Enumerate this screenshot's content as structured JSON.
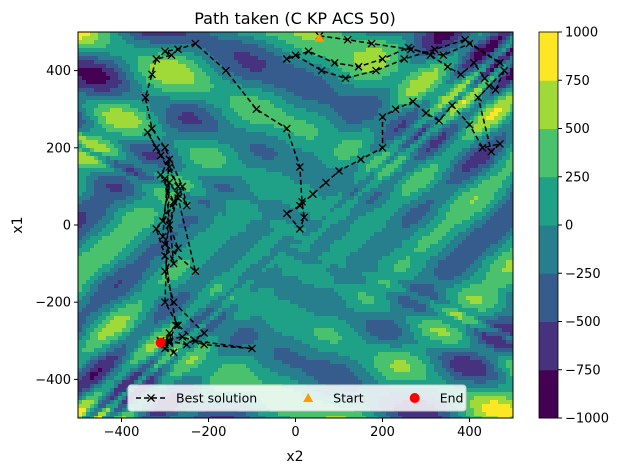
{
  "chart_data": {
    "type": "contour_path",
    "title": "Path taken (C KP ACS 50)",
    "xlabel": "x2",
    "ylabel": "x1",
    "xlim": [
      -500,
      500
    ],
    "ylim": [
      -500,
      500
    ],
    "xticks": [
      -400,
      -200,
      0,
      200,
      400
    ],
    "yticks": [
      -400,
      -200,
      0,
      200,
      400
    ],
    "grid": false,
    "legend_placement": "bottom-center",
    "colorbar": {
      "levels": [
        -1000,
        -750,
        -500,
        -250,
        0,
        250,
        500,
        750,
        1000
      ],
      "tick_labels": [
        "−1000",
        "−750",
        "−500",
        "−250",
        "0",
        "250",
        "500",
        "750",
        "1000"
      ],
      "colors": [
        "#440154",
        "#46327e",
        "#365c8d",
        "#277f8e",
        "#1fa187",
        "#4ac16d",
        "#a0da39",
        "#fde725"
      ]
    },
    "series": [
      {
        "name": "Best solution",
        "style": "dashed-black-x",
        "color": "#000000",
        "x": [
          55,
          120,
          175,
          265,
          340,
          400,
          470,
          390,
          320,
          250,
          185,
          115,
          60,
          0,
          -20,
          30,
          90,
          145,
          200,
          260,
          310,
          350,
          380,
          410,
          435,
          460,
          480,
          445,
          420,
          450,
          470,
          430,
          400,
          360,
          330,
          300,
          270,
          230,
          200,
          200,
          150,
          100,
          70,
          40,
          10,
          -20,
          10,
          20,
          15,
          10,
          -20,
          -90,
          -160,
          -230,
          -270,
          -300,
          -285,
          -320,
          -330,
          -345,
          -330,
          -300,
          -260,
          -250,
          -290,
          -320,
          -340,
          -310,
          -270,
          -290,
          -270,
          -300,
          -280,
          -210,
          -250,
          -290,
          -275,
          -300,
          -320,
          -280,
          -310,
          -290,
          -305,
          -280,
          -300,
          -270,
          -300,
          -230,
          -270,
          -305,
          -290,
          -300,
          -270,
          -230,
          -100,
          -210,
          -260,
          -310,
          -300,
          -290,
          -280,
          -300,
          -310,
          -290,
          -310
        ],
        "y": [
          490,
          480,
          470,
          455,
          440,
          470,
          420,
          480,
          455,
          430,
          400,
          380,
          400,
          440,
          430,
          450,
          420,
          410,
          430,
          460,
          440,
          410,
          390,
          420,
          380,
          350,
          400,
          360,
          330,
          190,
          210,
          200,
          260,
          310,
          270,
          290,
          320,
          300,
          280,
          200,
          170,
          140,
          110,
          80,
          50,
          30,
          -10,
          20,
          60,
          150,
          250,
          300,
          400,
          470,
          455,
          450,
          440,
          430,
          390,
          330,
          250,
          200,
          100,
          50,
          150,
          200,
          240,
          180,
          100,
          0,
          -60,
          -120,
          -200,
          -280,
          -310,
          -300,
          -260,
          -80,
          -10,
          60,
          130,
          170,
          -30,
          -100,
          120,
          80,
          -50,
          -120,
          70,
          10,
          110,
          -200,
          -260,
          -300,
          -320,
          -310,
          -290,
          -300,
          -310,
          -280,
          -330,
          -320,
          -300,
          -305,
          -300
        ]
      },
      {
        "name": "Start",
        "marker": "triangle",
        "color": "#ff9900",
        "x": [
          55
        ],
        "y": [
          485
        ]
      },
      {
        "name": "End",
        "marker": "circle",
        "color": "#ff0000",
        "x": [
          -310
        ],
        "y": [
          -305
        ]
      }
    ]
  }
}
